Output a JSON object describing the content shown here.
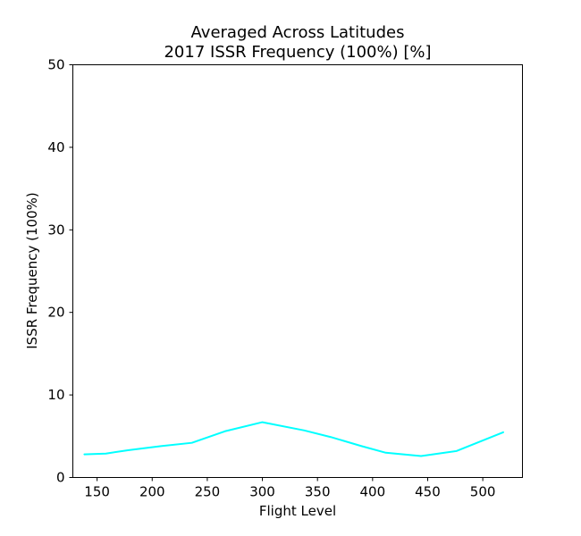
{
  "chart_data": {
    "type": "line",
    "title": "Averaged Across Latitudes",
    "subtitle": "2017 ISSR Frequency (100%) [%]",
    "xlabel": "Flight Level",
    "ylabel": "ISSR Frequency (100%)",
    "xlim": [
      128,
      536
    ],
    "ylim": [
      0,
      50
    ],
    "xticks": [
      150,
      200,
      250,
      300,
      350,
      400,
      450,
      500
    ],
    "yticks": [
      0,
      10,
      20,
      30,
      40,
      50
    ],
    "grid": false,
    "series": [
      {
        "color": "#00ffff",
        "x": [
          138,
          158,
          178,
          208,
          236,
          266,
          300,
          338,
          362,
          390,
          412,
          444,
          476,
          519
        ],
        "y": [
          2.8,
          2.9,
          3.3,
          3.8,
          4.2,
          5.6,
          6.7,
          5.7,
          4.9,
          3.8,
          3.0,
          2.6,
          3.2,
          5.5
        ]
      }
    ]
  }
}
